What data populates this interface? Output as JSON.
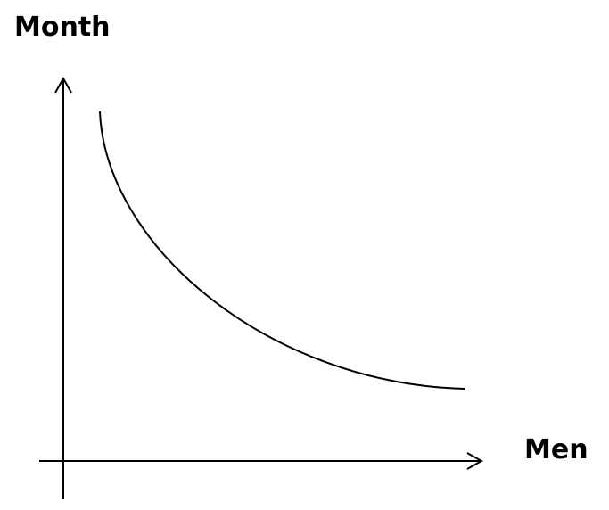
{
  "chart_data": {
    "type": "line",
    "title": "",
    "xlabel": "Men",
    "ylabel": "Month",
    "grid": false,
    "ticks": false,
    "curve": "inverse",
    "colors": {
      "axis": "#000000",
      "curve": "#000000"
    }
  }
}
